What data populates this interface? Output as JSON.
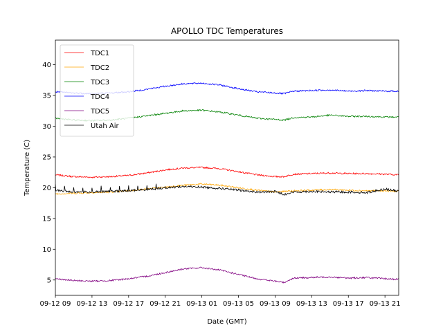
{
  "chart_data": {
    "type": "line",
    "title": "APOLLO TDC Temperatures",
    "xlabel": "Date (GMT)",
    "ylabel": "Temperature (C)",
    "xlim": [
      0,
      37.5
    ],
    "ylim": [
      2.5,
      44.0
    ],
    "yticks": [
      5,
      10,
      15,
      20,
      25,
      30,
      35,
      40
    ],
    "xticks": [
      {
        "t": 0,
        "label": "09-12 09"
      },
      {
        "t": 4,
        "label": "09-12 13"
      },
      {
        "t": 8,
        "label": "09-12 17"
      },
      {
        "t": 12,
        "label": "09-12 21"
      },
      {
        "t": 16,
        "label": "09-13 01"
      },
      {
        "t": 20,
        "label": "09-13 05"
      },
      {
        "t": 24,
        "label": "09-13 09"
      },
      {
        "t": 28,
        "label": "09-13 13"
      },
      {
        "t": 32,
        "label": "09-13 17"
      },
      {
        "t": 36,
        "label": "09-13 21"
      }
    ],
    "legend_position": "top-left",
    "series": [
      {
        "name": "TDC1",
        "color": "#ff0000",
        "x": [
          0,
          2,
          4,
          6,
          8,
          10,
          12,
          14,
          16,
          18,
          20,
          22,
          24,
          25,
          26,
          28,
          30,
          32,
          34,
          36,
          37.5
        ],
        "values": [
          22.1,
          21.8,
          21.7,
          21.8,
          22.0,
          22.4,
          22.9,
          23.2,
          23.3,
          23.1,
          22.6,
          22.1,
          21.8,
          21.8,
          22.2,
          22.3,
          22.4,
          22.3,
          22.3,
          22.2,
          22.1
        ]
      },
      {
        "name": "TDC2",
        "color": "#ffa500",
        "x": [
          0,
          2,
          4,
          6,
          8,
          10,
          12,
          14,
          16,
          18,
          20,
          22,
          24,
          26,
          28,
          30,
          32,
          34,
          36,
          37.5
        ],
        "values": [
          19.0,
          19.1,
          19.2,
          19.3,
          19.5,
          19.8,
          20.1,
          20.4,
          20.6,
          20.4,
          20.0,
          19.6,
          19.3,
          19.5,
          19.6,
          19.7,
          19.6,
          19.5,
          19.5,
          19.4
        ]
      },
      {
        "name": "TDC3",
        "color": "#008000",
        "x": [
          0,
          2,
          4,
          6,
          8,
          10,
          12,
          14,
          16,
          18,
          20,
          22,
          24,
          25,
          26,
          28,
          30,
          32,
          34,
          36,
          37.5
        ],
        "values": [
          31.3,
          31.0,
          30.9,
          31.0,
          31.3,
          31.7,
          32.1,
          32.5,
          32.6,
          32.3,
          31.8,
          31.3,
          31.1,
          31.0,
          31.4,
          31.5,
          31.8,
          31.6,
          31.6,
          31.5,
          31.5
        ]
      },
      {
        "name": "TDC4",
        "color": "#0000ff",
        "x": [
          0,
          2,
          4,
          6,
          8,
          10,
          12,
          14,
          16,
          18,
          20,
          22,
          24,
          25,
          26,
          28,
          30,
          32,
          34,
          36,
          37.5
        ],
        "values": [
          35.6,
          35.4,
          35.3,
          35.4,
          35.6,
          36.0,
          36.5,
          36.9,
          37.0,
          36.7,
          36.1,
          35.6,
          35.4,
          35.3,
          35.7,
          35.8,
          35.9,
          35.7,
          35.8,
          35.7,
          35.7
        ]
      },
      {
        "name": "TDC5",
        "color": "#800080",
        "x": [
          0,
          2,
          4,
          6,
          8,
          10,
          12,
          14,
          16,
          18,
          20,
          22,
          24,
          25,
          26,
          28,
          30,
          32,
          34,
          36,
          37.5
        ],
        "values": [
          5.2,
          4.9,
          4.8,
          4.9,
          5.2,
          5.6,
          6.2,
          6.8,
          7.0,
          6.6,
          5.9,
          5.2,
          4.8,
          4.6,
          5.3,
          5.4,
          5.5,
          5.3,
          5.4,
          5.2,
          5.1
        ]
      },
      {
        "name": "Utah Air",
        "color": "#000000",
        "x": [
          0,
          2,
          4,
          6,
          8,
          10,
          12,
          14,
          16,
          18,
          20,
          22,
          23,
          24,
          25,
          26,
          28,
          30,
          32,
          34,
          36,
          37.5
        ],
        "values": [
          19.6,
          19.3,
          19.3,
          19.4,
          19.5,
          19.7,
          20.0,
          20.2,
          20.1,
          19.9,
          19.6,
          19.3,
          19.3,
          19.4,
          18.9,
          19.3,
          19.4,
          19.3,
          19.3,
          19.2,
          19.8,
          19.4
        ]
      }
    ]
  }
}
